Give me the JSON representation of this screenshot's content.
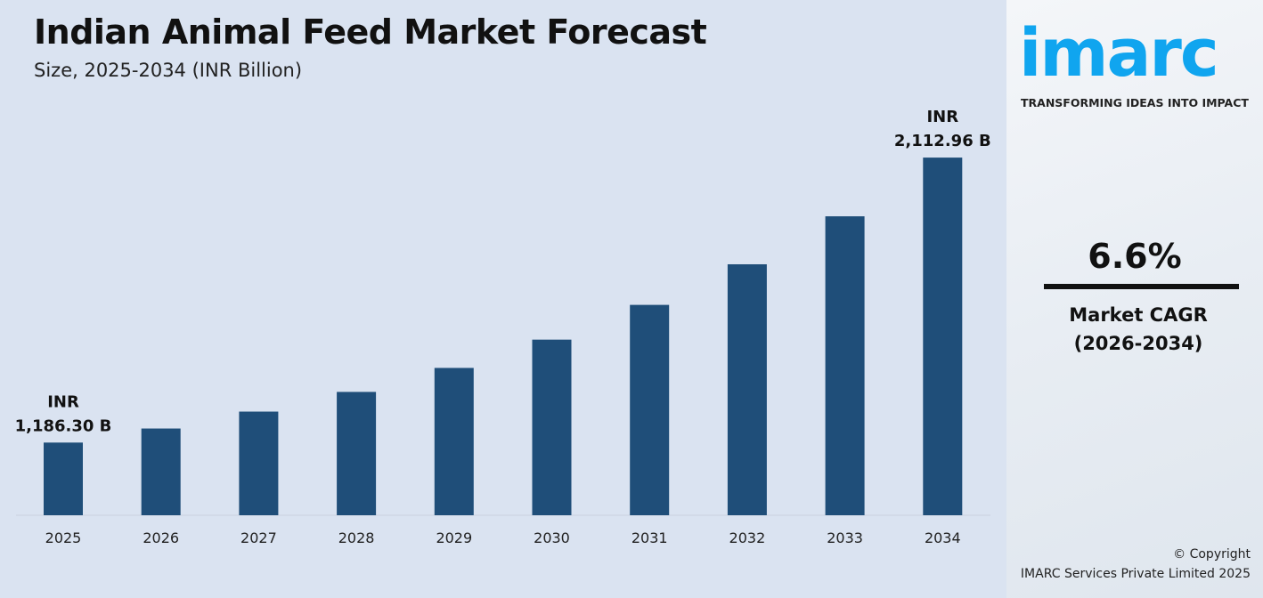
{
  "title": "Indian Animal Feed Market Forecast",
  "subtitle": "Size, 2025-2034 (INR Billion)",
  "brand": {
    "logo_text": "imarc",
    "tagline": "TRANSFORMING IDEAS INTO IMPACT",
    "color": "#10a5ef"
  },
  "cagr": {
    "value": "6.6%",
    "label_line1": "Market CAGR",
    "label_line2": "(2026-2034)"
  },
  "copyright": {
    "line1": "© Copyright",
    "line2": "IMARC Services Private Limited 2025"
  },
  "chart_data": {
    "type": "bar",
    "title": "Indian Animal Feed Market Forecast",
    "subtitle": "Size, 2025-2034 (INR Billion)",
    "categories": [
      "2025",
      "2026",
      "2027",
      "2028",
      "2029",
      "2030",
      "2031",
      "2032",
      "2033",
      "2034"
    ],
    "values": [
      1186.3,
      1232,
      1287,
      1351,
      1429,
      1521,
      1634,
      1766,
      1922,
      2112.96
    ],
    "ylim": [
      950,
      2200
    ],
    "bar_color": "#1f4e79",
    "grid": false,
    "annotations": [
      {
        "category": "2025",
        "line1": "INR",
        "line2": "1,186.30 B"
      },
      {
        "category": "2034",
        "line1": "INR",
        "line2": "2,112.96 B"
      }
    ]
  }
}
